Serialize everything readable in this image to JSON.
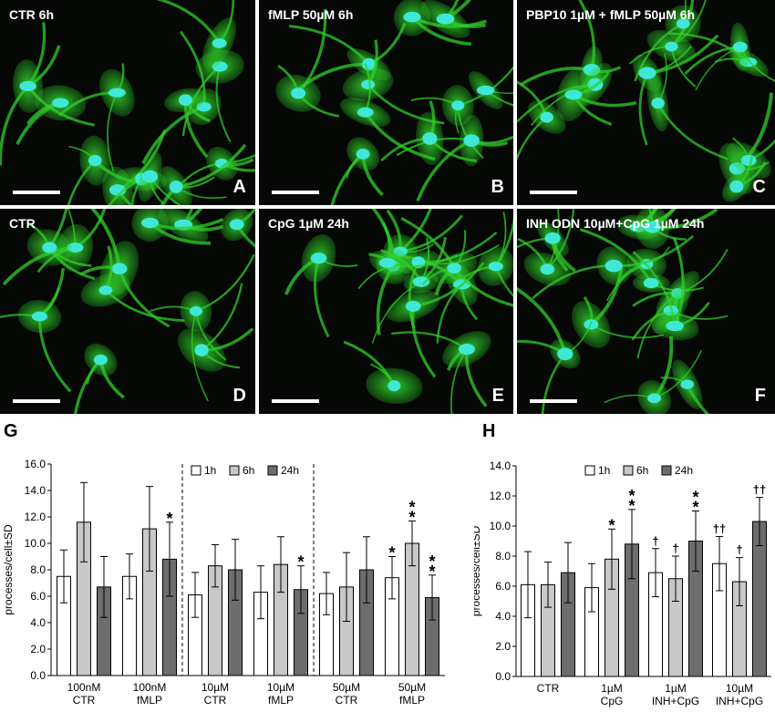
{
  "panels": [
    {
      "title": "CTR 6h",
      "letter": "A"
    },
    {
      "title": "fMLP 50µM 6h",
      "letter": "B"
    },
    {
      "title": "PBP10 1µM + fMLP 50µM 6h",
      "letter": "C"
    },
    {
      "title": "CTR",
      "letter": "D"
    },
    {
      "title": "CpG 1µM 24h",
      "letter": "E"
    },
    {
      "title": "INH ODN 10µM+CpG 1µM 24h",
      "letter": "F"
    }
  ],
  "panel_colors": {
    "background": "#050805",
    "cell": "#2fcf2a",
    "nucleus": "#3fe8d6"
  },
  "chart_letters": {
    "g": "G",
    "h": "H"
  },
  "chart_data": [
    {
      "type": "bar",
      "letter": "G",
      "ylabel": "processes/cell±SD",
      "ylim": [
        0,
        16
      ],
      "yticks": [
        "0.0",
        "2.0",
        "4.0",
        "6.0",
        "8.0",
        "10.0",
        "12.0",
        "14.0",
        "16.0"
      ],
      "legend": "top-center",
      "categories": [
        [
          "100nM",
          "CTR"
        ],
        [
          "100nM",
          "fMLP"
        ],
        [
          "10µM",
          "CTR"
        ],
        [
          "10µM",
          "fMLP"
        ],
        [
          "50µM",
          "CTR"
        ],
        [
          "50µM",
          "fMLP"
        ]
      ],
      "series": [
        {
          "name": "1h",
          "color": "#ffffff",
          "values": [
            7.5,
            7.5,
            6.1,
            6.3,
            6.2,
            7.4
          ],
          "sd": [
            2.0,
            1.7,
            1.7,
            2.0,
            1.6,
            1.6
          ]
        },
        {
          "name": "6h",
          "color": "#c8c8c8",
          "values": [
            11.6,
            11.1,
            8.3,
            8.4,
            6.7,
            10.0
          ],
          "sd": [
            3.0,
            3.2,
            1.6,
            2.1,
            2.6,
            1.7
          ]
        },
        {
          "name": "24h",
          "color": "#6d6d6d",
          "values": [
            6.7,
            8.8,
            8.0,
            6.5,
            8.0,
            5.9
          ],
          "sd": [
            2.3,
            2.8,
            2.3,
            1.8,
            2.5,
            1.7
          ]
        }
      ],
      "annotations": [
        {
          "category": 1,
          "series": 2,
          "text": "*"
        },
        {
          "category": 3,
          "series": 2,
          "text": "*"
        },
        {
          "category": 5,
          "series": 0,
          "text": "*"
        },
        {
          "category": 5,
          "series": 1,
          "text": "**"
        },
        {
          "category": 5,
          "series": 2,
          "text": "**"
        }
      ],
      "separators_after": [
        1,
        3
      ]
    },
    {
      "type": "bar",
      "letter": "H",
      "ylabel": "processes/cell±SD",
      "ylim": [
        0,
        14
      ],
      "yticks": [
        "0.0",
        "2.0",
        "4.0",
        "6.0",
        "8.0",
        "10.0",
        "12.0",
        "14.0"
      ],
      "legend": "top-center",
      "categories": [
        [
          "CTR"
        ],
        [
          "1µM",
          "CpG"
        ],
        [
          "1µM",
          "INH+CpG"
        ],
        [
          "10µM",
          "INH+CpG"
        ]
      ],
      "series": [
        {
          "name": "1h",
          "color": "#ffffff",
          "values": [
            6.1,
            5.9,
            6.9,
            7.5
          ],
          "sd": [
            2.2,
            1.6,
            1.6,
            1.8
          ]
        },
        {
          "name": "6h",
          "color": "#c8c8c8",
          "values": [
            6.1,
            7.8,
            6.5,
            6.3
          ],
          "sd": [
            1.5,
            2.0,
            1.5,
            1.6
          ]
        },
        {
          "name": "24h",
          "color": "#6d6d6d",
          "values": [
            6.9,
            8.8,
            9.0,
            10.3
          ],
          "sd": [
            2.0,
            2.3,
            2.0,
            1.6
          ]
        }
      ],
      "annotations": [
        {
          "category": 1,
          "series": 1,
          "text": "*"
        },
        {
          "category": 1,
          "series": 2,
          "text": "**"
        },
        {
          "category": 2,
          "series": 0,
          "text": "†"
        },
        {
          "category": 2,
          "series": 1,
          "text": "†"
        },
        {
          "category": 2,
          "series": 2,
          "text": "**"
        },
        {
          "category": 3,
          "series": 0,
          "text": "††"
        },
        {
          "category": 3,
          "series": 1,
          "text": "†"
        },
        {
          "category": 3,
          "series": 2,
          "text": "††"
        }
      ],
      "separators_after": []
    }
  ]
}
